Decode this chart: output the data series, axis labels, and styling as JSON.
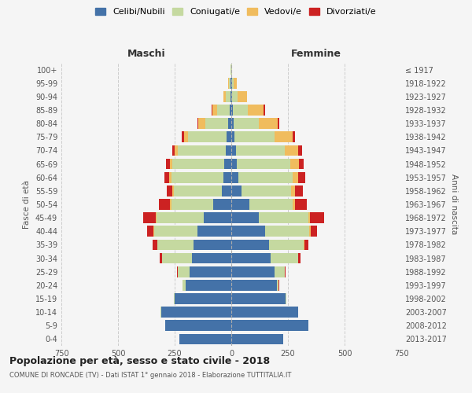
{
  "age_groups": [
    "0-4",
    "5-9",
    "10-14",
    "15-19",
    "20-24",
    "25-29",
    "30-34",
    "35-39",
    "40-44",
    "45-49",
    "50-54",
    "55-59",
    "60-64",
    "65-69",
    "70-74",
    "75-79",
    "80-84",
    "85-89",
    "90-94",
    "95-99",
    "100+"
  ],
  "birth_years": [
    "2013-2017",
    "2008-2012",
    "2003-2007",
    "1998-2002",
    "1993-1997",
    "1988-1992",
    "1983-1987",
    "1978-1982",
    "1973-1977",
    "1968-1972",
    "1963-1967",
    "1958-1962",
    "1953-1957",
    "1948-1952",
    "1943-1947",
    "1938-1942",
    "1933-1937",
    "1928-1932",
    "1923-1927",
    "1918-1922",
    "≤ 1917"
  ],
  "male": {
    "celibe": [
      230,
      290,
      310,
      250,
      200,
      185,
      175,
      165,
      150,
      120,
      80,
      40,
      35,
      30,
      25,
      20,
      15,
      8,
      4,
      2,
      0
    ],
    "coniugato": [
      0,
      0,
      2,
      5,
      15,
      50,
      130,
      160,
      190,
      210,
      185,
      215,
      230,
      230,
      210,
      170,
      100,
      55,
      20,
      8,
      2
    ],
    "vedovo": [
      0,
      0,
      0,
      0,
      0,
      0,
      1,
      2,
      3,
      5,
      5,
      5,
      8,
      10,
      15,
      20,
      30,
      20,
      10,
      3,
      0
    ],
    "divorziato": [
      0,
      0,
      0,
      0,
      2,
      5,
      10,
      20,
      30,
      55,
      50,
      25,
      22,
      18,
      12,
      8,
      5,
      3,
      2,
      0,
      0
    ]
  },
  "female": {
    "nubile": [
      230,
      340,
      295,
      240,
      200,
      190,
      175,
      165,
      150,
      120,
      80,
      45,
      30,
      25,
      20,
      15,
      10,
      8,
      3,
      2,
      0
    ],
    "coniugata": [
      0,
      0,
      1,
      3,
      10,
      45,
      120,
      155,
      195,
      220,
      190,
      220,
      240,
      235,
      215,
      175,
      110,
      65,
      25,
      8,
      2
    ],
    "vedova": [
      0,
      0,
      0,
      0,
      0,
      0,
      1,
      3,
      5,
      8,
      10,
      15,
      25,
      40,
      60,
      80,
      85,
      70,
      40,
      15,
      2
    ],
    "divorziata": [
      0,
      0,
      0,
      0,
      1,
      3,
      8,
      18,
      30,
      60,
      55,
      35,
      30,
      20,
      18,
      12,
      8,
      5,
      2,
      0,
      0
    ]
  },
  "colors": {
    "celibe": "#4472a8",
    "coniugato": "#c5d9a0",
    "vedovo": "#f0bc5e",
    "divorziato": "#cc2222"
  },
  "xlim": 750,
  "title": "Popolazione per età, sesso e stato civile - 2018",
  "subtitle": "COMUNE DI RONCADE (TV) - Dati ISTAT 1° gennaio 2018 - Elaborazione TUTTITALIA.IT",
  "ylabel_left": "Fasce di età",
  "ylabel_right": "Anni di nascita",
  "xlabel_male": "Maschi",
  "xlabel_female": "Femmine",
  "legend_labels": [
    "Celibi/Nubili",
    "Coniugati/e",
    "Vedovi/e",
    "Divorziati/e"
  ],
  "bg_color": "#f5f5f5"
}
